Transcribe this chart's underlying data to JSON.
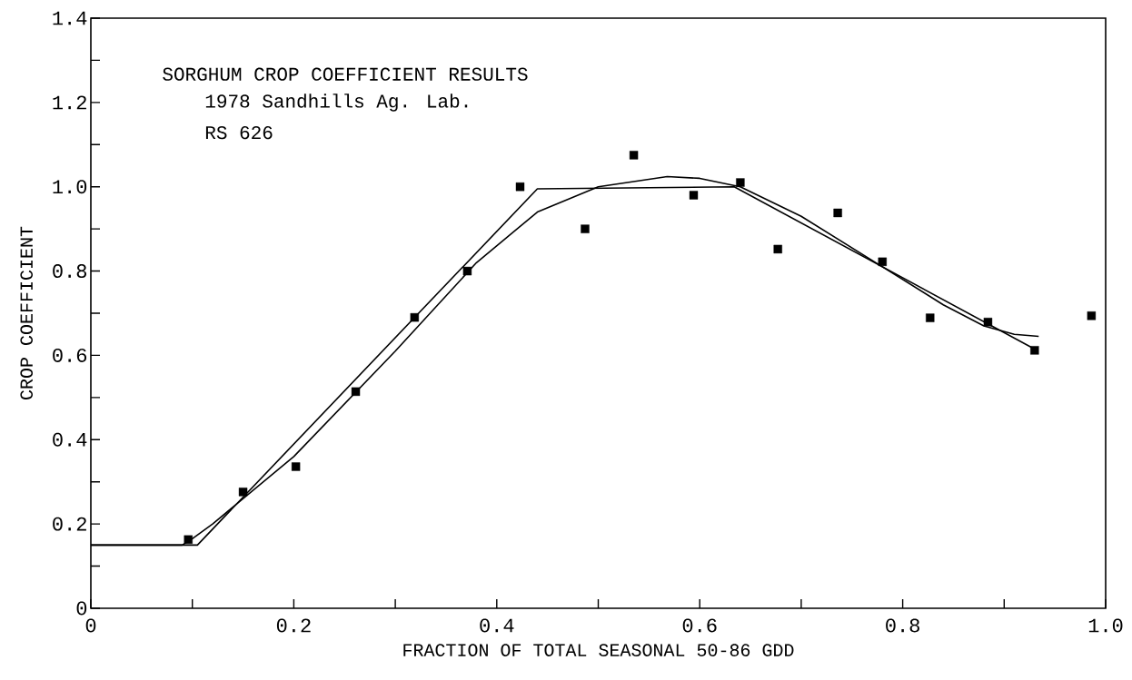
{
  "chart_data": {
    "type": "scatter",
    "title": "SORGHUM CROP COEFFICIENT RESULTS",
    "subtitle": "1978 Sandhills Ag. Lab.",
    "annotations": [
      "RS 626"
    ],
    "xlabel": "FRACTION OF TOTAL SEASONAL 50-86 GDD",
    "ylabel": "CROP COEFFICIENT",
    "xlim": [
      0,
      1
    ],
    "ylim": [
      0,
      1.4
    ],
    "xticks": [
      0,
      {
        "value": 0.1,
        "label": null
      },
      0.2,
      {
        "value": 0.3,
        "label": null
      },
      0.4,
      {
        "value": 0.5,
        "label": null
      },
      0.6,
      {
        "value": 0.7,
        "label": null
      },
      0.8,
      {
        "value": 0.9,
        "label": null
      },
      {
        "value": 1,
        "label": "1.0"
      }
    ],
    "yticks": [
      0,
      {
        "value": 0.1,
        "label": null
      },
      0.2,
      {
        "value": 0.3,
        "label": null
      },
      0.4,
      {
        "value": 0.5,
        "label": null
      },
      0.6,
      {
        "value": 0.7,
        "label": null
      },
      0.8,
      {
        "value": 0.9,
        "label": null
      },
      {
        "value": 1,
        "label": "1.0"
      },
      {
        "value": 1.1,
        "label": null
      },
      1.2,
      {
        "value": 1.3,
        "label": null
      },
      1.4
    ],
    "grid": false,
    "series": [
      {
        "marker": "square",
        "color": "#000000",
        "x": [
          0.096,
          0.15,
          0.202,
          0.261,
          0.319,
          0.371,
          0.423,
          0.487,
          0.535,
          0.594,
          0.64,
          0.677,
          0.736,
          0.78,
          0.827,
          0.884,
          0.93,
          0.986
        ],
        "values": [
          0.163,
          0.276,
          0.336,
          0.514,
          0.69,
          0.8,
          1.0,
          0.9,
          1.075,
          0.98,
          1.01,
          0.852,
          0.938,
          0.822,
          0.689,
          0.679,
          0.612,
          0.694
        ]
      },
      {
        "type": "line",
        "marker": "none",
        "line_style": "solid",
        "color": "#000000",
        "x": [
          0,
          0.105,
          0.44,
          0.634,
          0.93
        ],
        "values": [
          0.15,
          0.15,
          0.995,
          1.0,
          0.615
        ]
      },
      {
        "type": "line",
        "marker": "none",
        "line_style": "solid",
        "color": "#000000",
        "x": [
          0,
          0.09,
          0.1,
          0.12,
          0.2,
          0.3,
          0.38,
          0.44,
          0.5,
          0.568,
          0.6,
          0.64,
          0.7,
          0.78,
          0.84,
          0.88,
          0.91,
          0.934
        ],
        "values": [
          0.15,
          0.15,
          0.165,
          0.2,
          0.36,
          0.61,
          0.82,
          0.94,
          1.0,
          1.024,
          1.02,
          1.0,
          0.93,
          0.81,
          0.72,
          0.67,
          0.65,
          0.645
        ]
      }
    ]
  }
}
